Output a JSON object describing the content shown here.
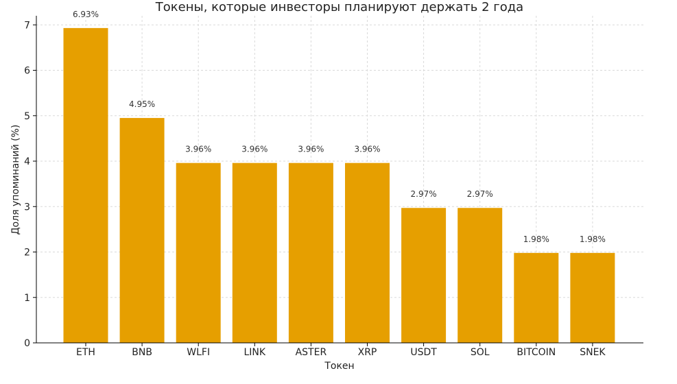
{
  "chart_data": {
    "type": "bar",
    "title": "Токены, которые инвесторы планируют держать 2 года",
    "xlabel": "Токен",
    "ylabel": "Доля упоминаний (%)",
    "categories": [
      "ETH",
      "BNB",
      "WLFI",
      "LINK",
      "ASTER",
      "XRP",
      "USDT",
      "SOL",
      "BITCOIN",
      "SNEK"
    ],
    "values": [
      6.93,
      4.95,
      3.96,
      3.96,
      3.96,
      3.96,
      2.97,
      2.97,
      1.98,
      1.98
    ],
    "data_labels": [
      "6.93%",
      "4.95%",
      "3.96%",
      "3.96%",
      "3.96%",
      "3.96%",
      "2.97%",
      "2.97%",
      "1.98%",
      "1.98%"
    ],
    "ylim": [
      0,
      7.2
    ],
    "yticks": [
      0,
      1,
      2,
      3,
      4,
      5,
      6,
      7
    ],
    "grid": true,
    "bar_color": "#e69f00"
  }
}
